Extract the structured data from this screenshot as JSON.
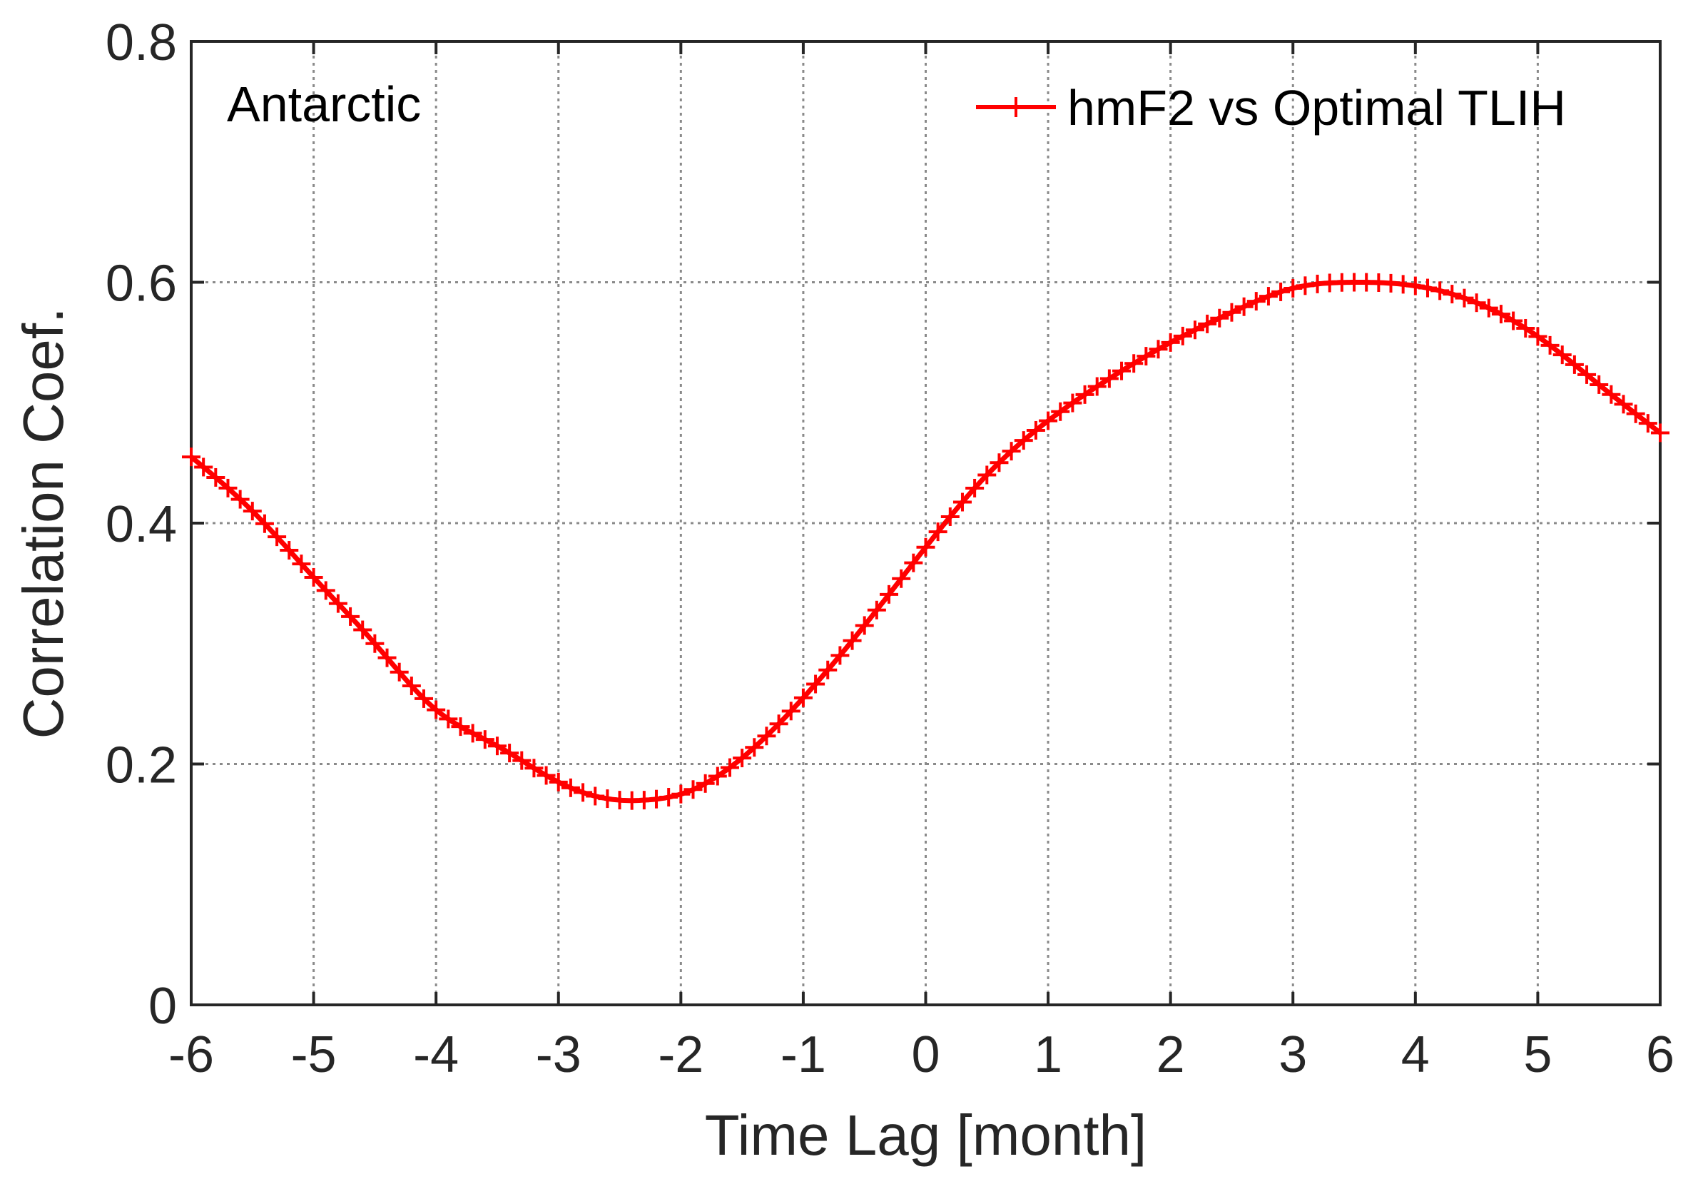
{
  "chart_data": {
    "type": "line",
    "xlabel": "Time Lag [month]",
    "ylabel": "Correlation Coef.",
    "xlim": [
      -6,
      6
    ],
    "ylim": [
      0,
      0.8
    ],
    "xticks": [
      "-6",
      "-5",
      "-4",
      "-3",
      "-2",
      "-1",
      "0",
      "1",
      "2",
      "3",
      "4",
      "5",
      "6"
    ],
    "yticks": [
      "0",
      "0.2",
      "0.4",
      "0.6",
      "0.8"
    ],
    "grid": true,
    "legend_position": "top-right",
    "annotation": "Antarctic",
    "series": [
      {
        "name": "hmF2 vs Optimal TLIH",
        "color": "#ff0000",
        "marker": "plus",
        "x": [
          -6.0,
          -5.5,
          -5.0,
          -4.5,
          -4.0,
          -3.5,
          -3.0,
          -2.5,
          -2.3,
          -2.0,
          -1.5,
          -1.0,
          -0.5,
          0.0,
          0.5,
          1.0,
          1.5,
          2.0,
          2.5,
          3.0,
          3.5,
          4.0,
          4.5,
          5.0,
          5.5,
          6.0
        ],
        "y": [
          0.455,
          0.41,
          0.355,
          0.3,
          0.245,
          0.215,
          0.185,
          0.17,
          0.17,
          0.175,
          0.205,
          0.255,
          0.315,
          0.38,
          0.44,
          0.485,
          0.52,
          0.55,
          0.575,
          0.595,
          0.6,
          0.597,
          0.583,
          0.555,
          0.515,
          0.475
        ]
      }
    ]
  }
}
